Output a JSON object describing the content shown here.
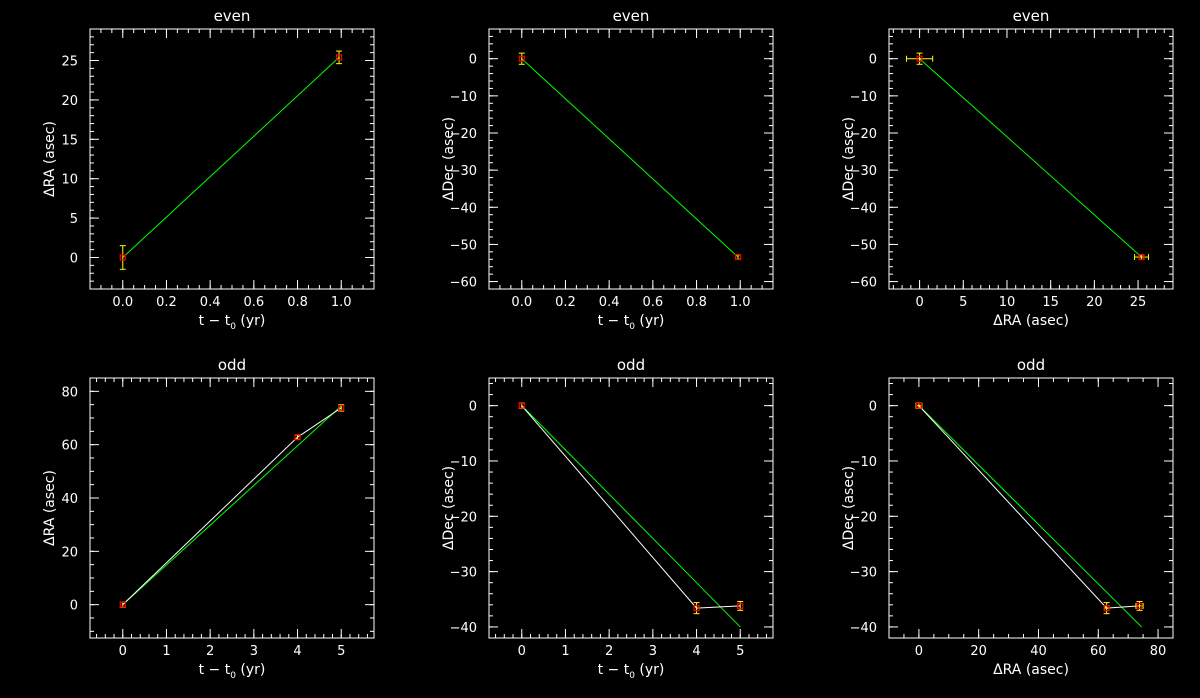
{
  "colors": {
    "background": "#000000",
    "axes": "#ffffff",
    "data_line": "#ffffff",
    "fit_line": "#00ff00",
    "error_bar": "#ffff00",
    "marker": "#ff0000"
  },
  "chart_data": [
    {
      "type": "scatter",
      "title": "even",
      "xlabel": "t − t",
      "xlabel_sub": "0",
      "xlabel_tail": " (yr)",
      "ylabel": "ΔRA (asec)",
      "xlim": [
        -0.15,
        1.15
      ],
      "ylim": [
        -4,
        29
      ],
      "xticks": [
        0.0,
        0.2,
        0.4,
        0.6,
        0.8,
        1.0
      ],
      "xticklabels": [
        "0.0",
        "0.2",
        "0.4",
        "0.6",
        "0.8",
        "1.0"
      ],
      "yticks": [
        0,
        5,
        10,
        15,
        20,
        25
      ],
      "yticklabels": [
        "0",
        "5",
        "10",
        "15",
        "20",
        "25"
      ],
      "points": [
        {
          "x": 0.0,
          "y": 0.0,
          "yerr": 1.5
        },
        {
          "x": 0.99,
          "y": 25.4,
          "yerr": 0.8
        }
      ],
      "fit": [
        [
          0.0,
          0.0
        ],
        [
          0.99,
          25.4
        ]
      ]
    },
    {
      "type": "scatter",
      "title": "even",
      "xlabel": "t − t",
      "xlabel_sub": "0",
      "xlabel_tail": " (yr)",
      "ylabel": "ΔDec (asec)",
      "xlim": [
        -0.15,
        1.15
      ],
      "ylim": [
        -62,
        8
      ],
      "xticks": [
        0.0,
        0.2,
        0.4,
        0.6,
        0.8,
        1.0
      ],
      "xticklabels": [
        "0.0",
        "0.2",
        "0.4",
        "0.6",
        "0.8",
        "1.0"
      ],
      "yticks": [
        0,
        -10,
        -20,
        -30,
        -40,
        -50,
        -60
      ],
      "yticklabels": [
        "0",
        "−10",
        "−20",
        "−30",
        "−40",
        "−50",
        "−60"
      ],
      "points": [
        {
          "x": 0.0,
          "y": 0.0,
          "yerr": 1.5
        },
        {
          "x": 0.99,
          "y": -53.4,
          "yerr": 0.6
        }
      ],
      "fit": [
        [
          0.0,
          0.0
        ],
        [
          0.99,
          -53.4
        ]
      ]
    },
    {
      "type": "scatter",
      "title": "even",
      "xlabel": "ΔRA (asec)",
      "ylabel": "ΔDec (asec)",
      "xlim": [
        -3.5,
        29
      ],
      "ylim": [
        -62,
        8
      ],
      "xticks": [
        0,
        5,
        10,
        15,
        20,
        25
      ],
      "xticklabels": [
        "0",
        "5",
        "10",
        "15",
        "20",
        "25"
      ],
      "yticks": [
        0,
        -10,
        -20,
        -30,
        -40,
        -50,
        -60
      ],
      "yticklabels": [
        "0",
        "−10",
        "−20",
        "−30",
        "−40",
        "−50",
        "−60"
      ],
      "points": [
        {
          "x": 0.0,
          "y": 0.0,
          "xerr": 1.5,
          "yerr": 1.5
        },
        {
          "x": 25.4,
          "y": -53.4,
          "xerr": 0.8,
          "yerr": 0.6
        }
      ],
      "fit": [
        [
          0.0,
          0.0
        ],
        [
          25.4,
          -53.4
        ]
      ]
    },
    {
      "type": "scatter",
      "title": "odd",
      "xlabel": "t − t",
      "xlabel_sub": "0",
      "xlabel_tail": " (yr)",
      "ylabel": "ΔRA (asec)",
      "xlim": [
        -0.75,
        5.75
      ],
      "ylim": [
        -12.5,
        85
      ],
      "xticks": [
        0,
        1,
        2,
        3,
        4,
        5
      ],
      "xticklabels": [
        "0",
        "1",
        "2",
        "3",
        "4",
        "5"
      ],
      "yticks": [
        0,
        20,
        40,
        60,
        80
      ],
      "yticklabels": [
        "0",
        "20",
        "40",
        "60",
        "80"
      ],
      "points": [
        {
          "x": 0.0,
          "y": 0.0,
          "yerr": 1.0
        },
        {
          "x": 4.0,
          "y": 62.8,
          "yerr": 0.8
        },
        {
          "x": 5.0,
          "y": 73.8,
          "yerr": 1.2
        }
      ],
      "connect": [
        [
          0.0,
          0.0
        ],
        [
          4.0,
          62.8
        ],
        [
          5.0,
          73.8
        ]
      ],
      "fit": [
        [
          0.0,
          0.0
        ],
        [
          5.0,
          74.5
        ]
      ]
    },
    {
      "type": "scatter",
      "title": "odd",
      "xlabel": "t − t",
      "xlabel_sub": "0",
      "xlabel_tail": " (yr)",
      "ylabel": "ΔDec (asec)",
      "xlim": [
        -0.75,
        5.75
      ],
      "ylim": [
        -42,
        5
      ],
      "xticks": [
        0,
        1,
        2,
        3,
        4,
        5
      ],
      "xticklabels": [
        "0",
        "1",
        "2",
        "3",
        "4",
        "5"
      ],
      "yticks": [
        0,
        -10,
        -20,
        -30,
        -40
      ],
      "yticklabels": [
        "0",
        "−10",
        "−20",
        "−30",
        "−40"
      ],
      "points": [
        {
          "x": 0.0,
          "y": 0.0,
          "yerr": 0.5
        },
        {
          "x": 4.0,
          "y": -36.6,
          "yerr": 1.0
        },
        {
          "x": 5.0,
          "y": -36.2,
          "yerr": 0.8
        }
      ],
      "connect": [
        [
          0.0,
          0.0
        ],
        [
          4.0,
          -36.6
        ],
        [
          5.0,
          -36.2
        ]
      ],
      "fit": [
        [
          0.0,
          0.0
        ],
        [
          5.0,
          -40.0
        ]
      ]
    },
    {
      "type": "scatter",
      "title": "odd",
      "xlabel": "ΔRA (asec)",
      "ylabel": "ΔDec (asec)",
      "xlim": [
        -10,
        85
      ],
      "ylim": [
        -42,
        5
      ],
      "xticks": [
        0,
        20,
        40,
        60,
        80
      ],
      "xticklabels": [
        "0",
        "20",
        "40",
        "60",
        "80"
      ],
      "yticks": [
        0,
        -10,
        -20,
        -30,
        -40
      ],
      "yticklabels": [
        "0",
        "−10",
        "−20",
        "−30",
        "−40"
      ],
      "points": [
        {
          "x": 0.0,
          "y": 0.0,
          "xerr": 1.0,
          "yerr": 0.5
        },
        {
          "x": 62.8,
          "y": -36.6,
          "xerr": 0.8,
          "yerr": 1.0
        },
        {
          "x": 73.8,
          "y": -36.2,
          "xerr": 1.2,
          "yerr": 0.8
        }
      ],
      "connect": [
        [
          0.0,
          0.0
        ],
        [
          62.8,
          -36.6
        ],
        [
          73.8,
          -36.2
        ]
      ],
      "fit": [
        [
          0.0,
          0.0
        ],
        [
          74.5,
          -40.0
        ]
      ]
    }
  ]
}
